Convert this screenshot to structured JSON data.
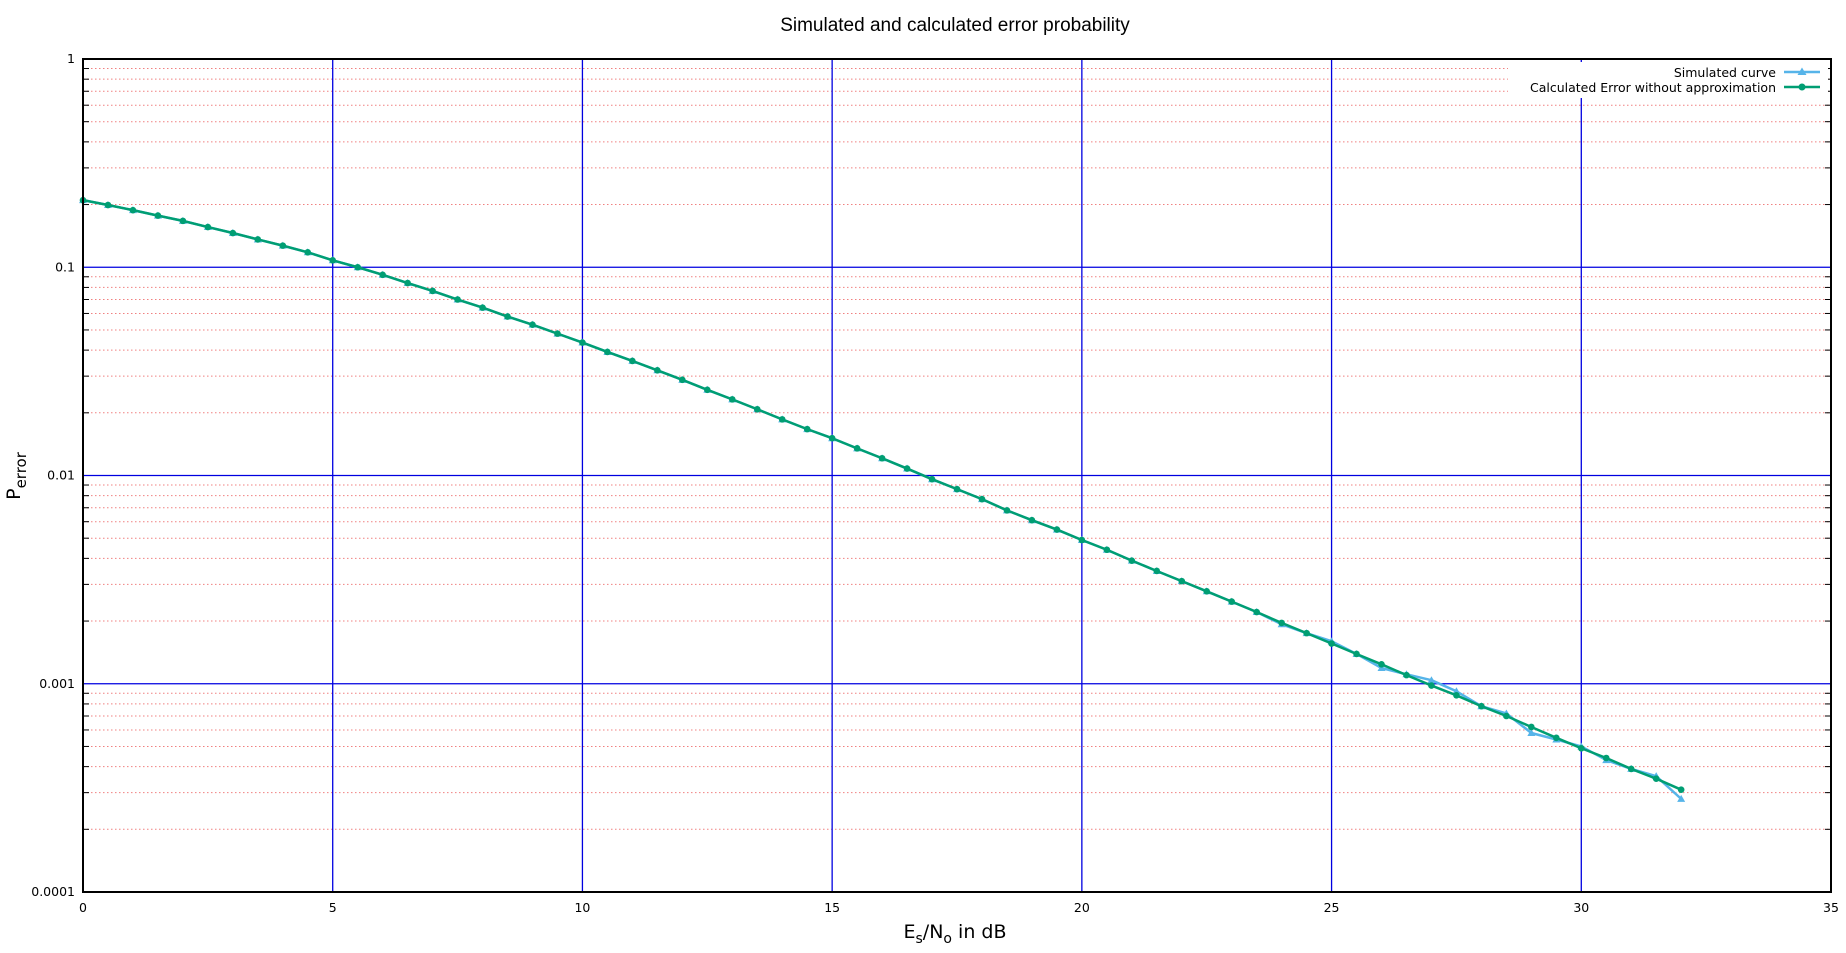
{
  "chart_data": {
    "type": "line",
    "title": "Simulated and calculated error probability",
    "xlabel": {
      "main": "E",
      "sub1": "s",
      "mid": "/N",
      "sub2": "o",
      "tail": " in dB"
    },
    "ylabel": {
      "main": "P",
      "sub": "error"
    },
    "xlim": [
      0,
      35
    ],
    "ylim": [
      0.0001,
      1
    ],
    "yscale": "log",
    "xticks": [
      "0",
      "5",
      "10",
      "15",
      "20",
      "25",
      "30",
      "35"
    ],
    "yticks": [
      "0.0001",
      "0.001",
      "0.01",
      "0.1",
      "1"
    ],
    "grid": {
      "major": true,
      "minor_y": true
    },
    "legend_position": "top-right",
    "colors": {
      "major_grid": "#0000e0",
      "minor_grid": "#f08080",
      "axes": "#000000",
      "simulated": "#56b4e9",
      "calculated": "#009e73"
    },
    "series": [
      {
        "name": "Simulated curve",
        "marker": "triangle",
        "x": [
          0,
          0.5,
          1,
          1.5,
          2,
          2.5,
          3,
          3.5,
          4,
          4.5,
          5,
          5.5,
          6,
          6.5,
          7,
          7.5,
          8,
          8.5,
          9,
          9.5,
          10,
          10.5,
          11,
          11.5,
          12,
          12.5,
          13,
          13.5,
          14,
          14.5,
          15,
          15.5,
          16,
          16.5,
          17,
          17.5,
          18,
          18.5,
          19,
          19.5,
          20,
          20.5,
          21,
          21.5,
          22,
          22.5,
          23,
          23.5,
          24,
          24.5,
          25,
          25.5,
          26,
          26.5,
          27,
          27.5,
          28,
          28.5,
          29,
          29.5,
          30,
          30.5,
          31,
          31.5,
          32
        ],
        "y": [
          0.21,
          0.199,
          0.188,
          0.177,
          0.167,
          0.156,
          0.146,
          0.136,
          0.127,
          0.118,
          0.108,
          0.1,
          0.092,
          0.084,
          0.077,
          0.07,
          0.064,
          0.058,
          0.053,
          0.048,
          0.0435,
          0.0392,
          0.0355,
          0.032,
          0.0288,
          0.0258,
          0.0232,
          0.0208,
          0.0186,
          0.0167,
          0.0151,
          0.0135,
          0.0121,
          0.0108,
          0.0096,
          0.0086,
          0.0077,
          0.0068,
          0.0061,
          0.0055,
          0.0049,
          0.0044,
          0.0039,
          0.00348,
          0.00311,
          0.00278,
          0.00248,
          0.00221,
          0.00193,
          0.00175,
          0.0016,
          0.00139,
          0.00119,
          0.00111,
          0.00104,
          0.00092,
          0.00078,
          0.00072,
          0.00058,
          0.00054,
          0.0005,
          0.00043,
          0.00039,
          0.00036,
          0.00028
        ]
      },
      {
        "name": "Calculated Error without approximation",
        "marker": "circle",
        "x": [
          0,
          0.5,
          1,
          1.5,
          2,
          2.5,
          3,
          3.5,
          4,
          4.5,
          5,
          5.5,
          6,
          6.5,
          7,
          7.5,
          8,
          8.5,
          9,
          9.5,
          10,
          10.5,
          11,
          11.5,
          12,
          12.5,
          13,
          13.5,
          14,
          14.5,
          15,
          15.5,
          16,
          16.5,
          17,
          17.5,
          18,
          18.5,
          19,
          19.5,
          20,
          20.5,
          21,
          21.5,
          22,
          22.5,
          23,
          23.5,
          24,
          24.5,
          25,
          25.5,
          26,
          26.5,
          27,
          27.5,
          28,
          28.5,
          29,
          29.5,
          30,
          30.5,
          31,
          31.5,
          32
        ],
        "y": [
          0.21,
          0.199,
          0.188,
          0.177,
          0.167,
          0.156,
          0.146,
          0.136,
          0.127,
          0.118,
          0.108,
          0.1,
          0.092,
          0.084,
          0.077,
          0.07,
          0.064,
          0.058,
          0.053,
          0.048,
          0.0435,
          0.0392,
          0.0355,
          0.032,
          0.0288,
          0.0258,
          0.0232,
          0.0208,
          0.0186,
          0.0167,
          0.0151,
          0.0135,
          0.0121,
          0.0108,
          0.0096,
          0.0086,
          0.0077,
          0.0068,
          0.0061,
          0.0055,
          0.0049,
          0.0044,
          0.0039,
          0.00348,
          0.00311,
          0.00278,
          0.00248,
          0.00221,
          0.00196,
          0.00175,
          0.00156,
          0.00139,
          0.00124,
          0.0011,
          0.00098,
          0.00088,
          0.00078,
          0.0007,
          0.00062,
          0.00055,
          0.00049,
          0.00044,
          0.00039,
          0.00035,
          0.00031
        ]
      }
    ]
  }
}
